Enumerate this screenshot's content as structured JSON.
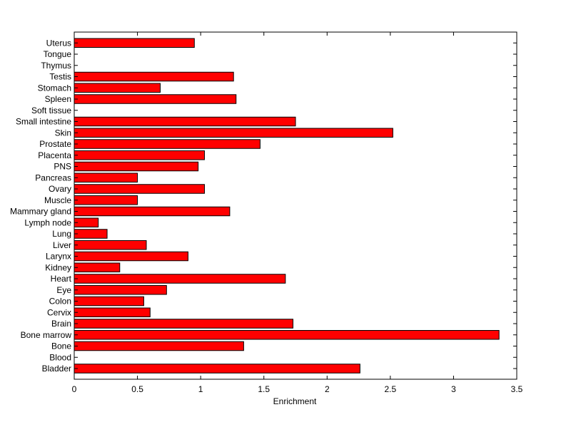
{
  "chart_data": {
    "type": "bar",
    "orientation": "horizontal",
    "categories": [
      "Bladder",
      "Blood",
      "Bone",
      "Bone marrow",
      "Brain",
      "Cervix",
      "Colon",
      "Eye",
      "Heart",
      "Kidney",
      "Larynx",
      "Liver",
      "Lung",
      "Lymph node",
      "Mammary gland",
      "Muscle",
      "Ovary",
      "Pancreas",
      "PNS",
      "Placenta",
      "Prostate",
      "Skin",
      "Small intestine",
      "Soft tissue",
      "Spleen",
      "Stomach",
      "Testis",
      "Thymus",
      "Tongue",
      "Uterus"
    ],
    "values": [
      2.26,
      0,
      1.34,
      3.36,
      1.73,
      0.6,
      0.55,
      0.73,
      1.67,
      0.36,
      0.9,
      0.57,
      0.26,
      0.19,
      1.23,
      0.5,
      1.03,
      0.5,
      0.98,
      1.03,
      1.47,
      2.52,
      1.75,
      0,
      1.28,
      0.68,
      1.26,
      0,
      0,
      0.95
    ],
    "xlabel": "Enrichment",
    "ylabel": "",
    "title": "",
    "xlim": [
      0,
      3.5
    ],
    "xticks": [
      "0",
      "0.5",
      "1",
      "1.5",
      "2",
      "2.5",
      "3",
      "3.5"
    ],
    "grid": false,
    "bar_color": "#ff0000",
    "edge_color": "#000000"
  }
}
